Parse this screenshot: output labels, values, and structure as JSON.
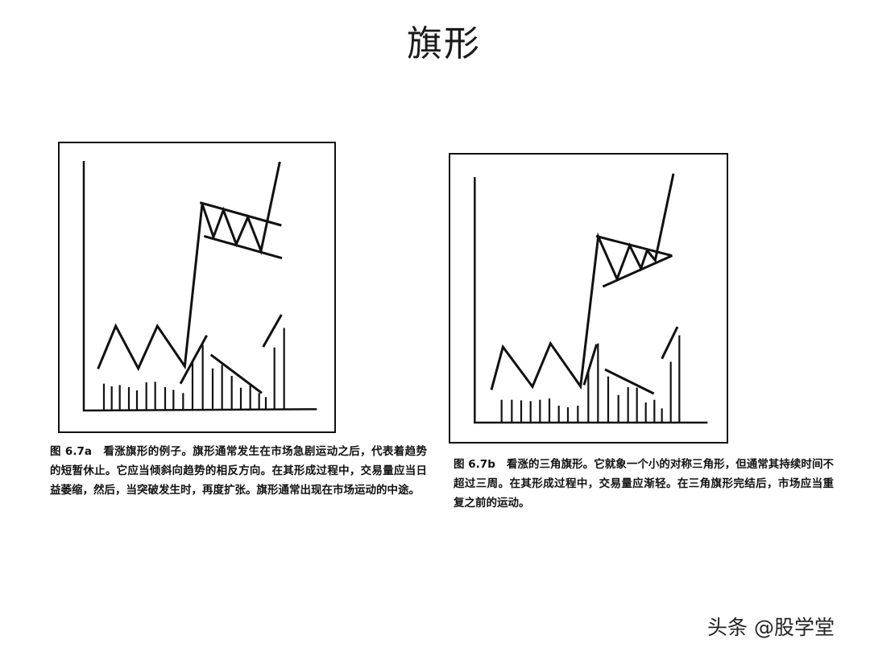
{
  "title": "旗形",
  "figure_a": {
    "label": "图 6.7a",
    "caption": "看涨旗形的例子。旗形通常发生在市场急剧运动之后，代表着趋势的短暂休止。它应当倾斜向趋势的相反方向。在其形成过程中，交易量应当日益萎缩，然后，当突破发生时，再度扩张。旗形通常出现在市场运动的中途。"
  },
  "figure_b": {
    "label": "图 6.7b",
    "caption": "看涨的三角旗形。它就象一个小的对称三角形，但通常其持续时间不超过三周。在其形成过程中，交易量应渐轻。在三角旗形完结后，市场应当重复之前的运动。"
  },
  "watermark": "头条 @股学堂",
  "colors": {
    "ink": "#111111",
    "background": "#ffffff"
  }
}
